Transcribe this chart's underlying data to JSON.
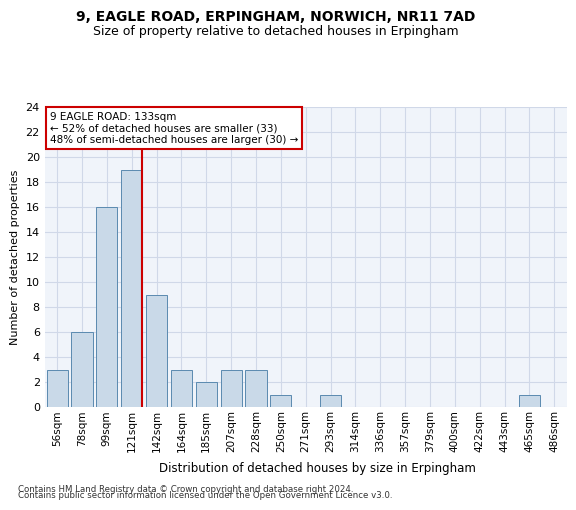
{
  "title1": "9, EAGLE ROAD, ERPINGHAM, NORWICH, NR11 7AD",
  "title2": "Size of property relative to detached houses in Erpingham",
  "xlabel": "Distribution of detached houses by size in Erpingham",
  "ylabel": "Number of detached properties",
  "bar_labels": [
    "56sqm",
    "78sqm",
    "99sqm",
    "121sqm",
    "142sqm",
    "164sqm",
    "185sqm",
    "207sqm",
    "228sqm",
    "250sqm",
    "271sqm",
    "293sqm",
    "314sqm",
    "336sqm",
    "357sqm",
    "379sqm",
    "400sqm",
    "422sqm",
    "443sqm",
    "465sqm",
    "486sqm"
  ],
  "bar_values": [
    3,
    6,
    16,
    19,
    9,
    3,
    2,
    3,
    3,
    1,
    0,
    1,
    0,
    0,
    0,
    0,
    0,
    0,
    0,
    1,
    0
  ],
  "bar_color": "#c9d9e8",
  "bar_edge_color": "#5a8ab0",
  "grid_color": "#d0d8e8",
  "bg_color": "#f0f4fa",
  "vline_color": "#cc0000",
  "annotation_text": "9 EAGLE ROAD: 133sqm\n← 52% of detached houses are smaller (33)\n48% of semi-detached houses are larger (30) →",
  "annotation_box_color": "#ffffff",
  "annotation_border_color": "#cc0000",
  "ylim": [
    0,
    24
  ],
  "yticks": [
    0,
    2,
    4,
    6,
    8,
    10,
    12,
    14,
    16,
    18,
    20,
    22,
    24
  ],
  "footer1": "Contains HM Land Registry data © Crown copyright and database right 2024.",
  "footer2": "Contains public sector information licensed under the Open Government Licence v3.0."
}
